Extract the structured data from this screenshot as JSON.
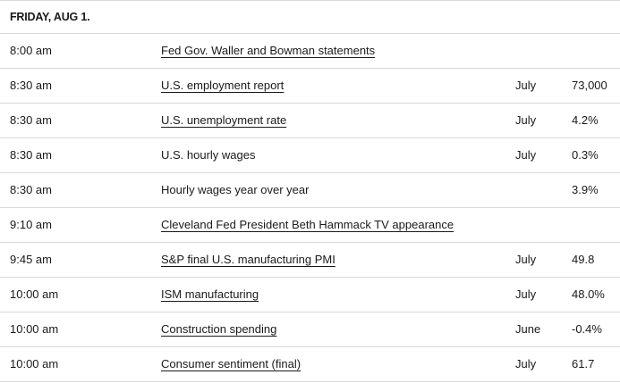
{
  "header": {
    "date": "FRIDAY, AUG 1."
  },
  "rows": [
    {
      "time": "8:00 am",
      "event": "Fed Gov. Waller and Bowman statements",
      "period": "",
      "value": ""
    },
    {
      "time": "8:30 am",
      "event": "U.S. employment report",
      "period": "July",
      "value": "73,000"
    },
    {
      "time": "8:30 am",
      "event": "U.S. unemployment rate",
      "period": "July",
      "value": "4.2%"
    },
    {
      "time": "8:30 am",
      "event": "U.S. hourly wages",
      "period": "July",
      "value": "0.3%"
    },
    {
      "time": "8:30 am",
      "event": "Hourly wages year over year",
      "period": "",
      "value": "3.9%"
    },
    {
      "time": "9:10 am",
      "event": "Cleveland Fed President Beth Hammack TV appearance",
      "period": "",
      "value": ""
    },
    {
      "time": "9:45 am",
      "event": "S&P final U.S. manufacturing PMI",
      "period": "July",
      "value": "49.8"
    },
    {
      "time": "10:00 am",
      "event": "ISM manufacturing",
      "period": "July",
      "value": "48.0%"
    },
    {
      "time": "10:00 am",
      "event": "Construction spending",
      "period": "June",
      "value": "-0.4%"
    },
    {
      "time": "10:00 am",
      "event": "Consumer sentiment (final)",
      "period": "July",
      "value": "61.7"
    }
  ]
}
